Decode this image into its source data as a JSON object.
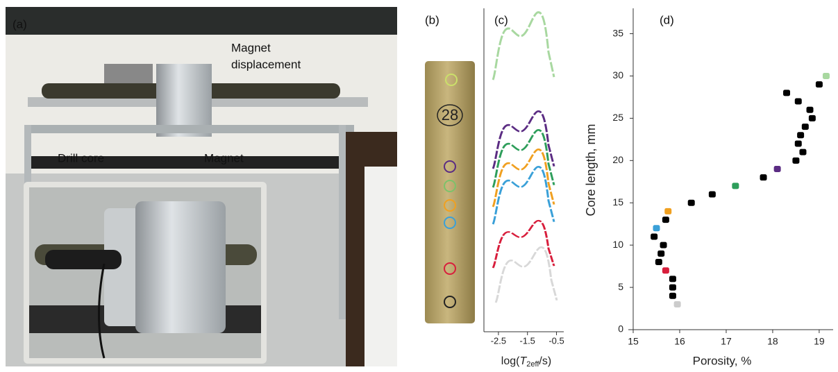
{
  "panels": {
    "a": {
      "label": "(a)",
      "magnet_displacement": [
        "Magnet",
        "displacement"
      ],
      "drill_core": "Drill core",
      "magnet": "Magnet"
    },
    "b": {
      "label": "(b)",
      "core_number": "28"
    }
  },
  "chart_data": [
    {
      "type": "line",
      "label": "(c)",
      "xlabel": [
        "log(",
        "T",
        "2eff",
        "/s)"
      ],
      "xlim": [
        -3,
        -0.25
      ],
      "xticks": [
        -2.5,
        -1.5,
        -0.5
      ]
    },
    {
      "type": "scatter",
      "label": "(d)",
      "xlabel": "Porosity, %",
      "ylabel": "Core length, mm",
      "x": [
        19.15,
        19.0,
        18.3,
        18.55,
        18.8,
        18.85,
        18.7,
        18.6,
        18.55,
        18.65,
        18.5,
        18.1,
        17.8,
        17.2,
        16.7,
        16.25,
        15.75,
        15.7,
        15.5,
        15.45,
        15.65,
        15.6,
        15.55,
        15.7,
        15.85,
        15.85,
        15.85,
        15.95
      ],
      "y": [
        30,
        29,
        28,
        27,
        26,
        25,
        24,
        23,
        22,
        21,
        20,
        19,
        18,
        17,
        16,
        15,
        14,
        13,
        12,
        11,
        10,
        9,
        8,
        7,
        6,
        5,
        4,
        3
      ],
      "colors": [
        "#a8d8a0",
        "#000000",
        "#000000",
        "#000000",
        "#000000",
        "#000000",
        "#000000",
        "#000000",
        "#000000",
        "#000000",
        "#000000",
        "#5b2c83",
        "#000000",
        "#2e9e5b",
        "#000000",
        "#000000",
        "#f0a020",
        "#000000",
        "#3aa0d8",
        "#000000",
        "#000000",
        "#000000",
        "#000000",
        "#d81e3c",
        "#000000",
        "#000000",
        "#000000",
        "#cccccc"
      ],
      "xlim": [
        15,
        19.3
      ],
      "ylim": [
        0,
        38
      ],
      "xticks": [
        15,
        16,
        17,
        18,
        19
      ],
      "yticks": [
        0,
        5,
        10,
        15,
        20,
        25,
        30,
        35
      ]
    }
  ]
}
